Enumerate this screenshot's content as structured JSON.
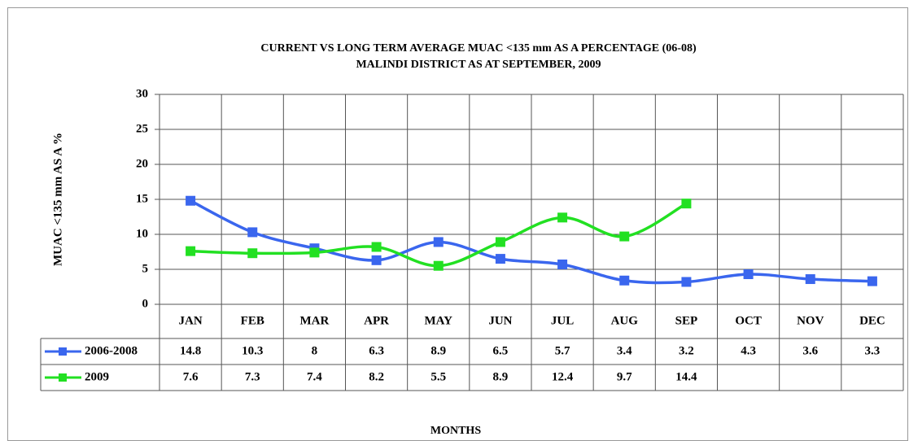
{
  "chart_data": {
    "type": "line",
    "title": "CURRENT VS LONG TERM AVERAGE  MUAC <135 mm AS A PERCENTAGE  (06-08)",
    "subtitle": "MALINDI DISTRICT AS AT SEPTEMBER, 2009",
    "y_label": "MUAC <135 mm AS A %",
    "x_label": "MONTHS",
    "categories": [
      "JAN",
      "FEB",
      "MAR",
      "APR",
      "MAY",
      "JUN",
      "JUL",
      "AUG",
      "SEP",
      "OCT",
      "NOV",
      "DEC"
    ],
    "series": [
      {
        "name": "2006-2008",
        "color": "#3a66ee",
        "values": [
          14.8,
          10.3,
          8,
          6.3,
          8.9,
          6.5,
          5.7,
          3.4,
          3.2,
          4.3,
          3.6,
          3.3
        ]
      },
      {
        "name": "2009",
        "color": "#22e022",
        "values": [
          7.6,
          7.3,
          7.4,
          8.2,
          5.5,
          8.9,
          12.4,
          9.7,
          14.4,
          null,
          null,
          null
        ]
      }
    ],
    "ylim": [
      0,
      30
    ],
    "yticks": [
      0,
      5,
      10,
      15,
      20,
      25,
      30
    ],
    "grid": true,
    "smooth": true
  }
}
